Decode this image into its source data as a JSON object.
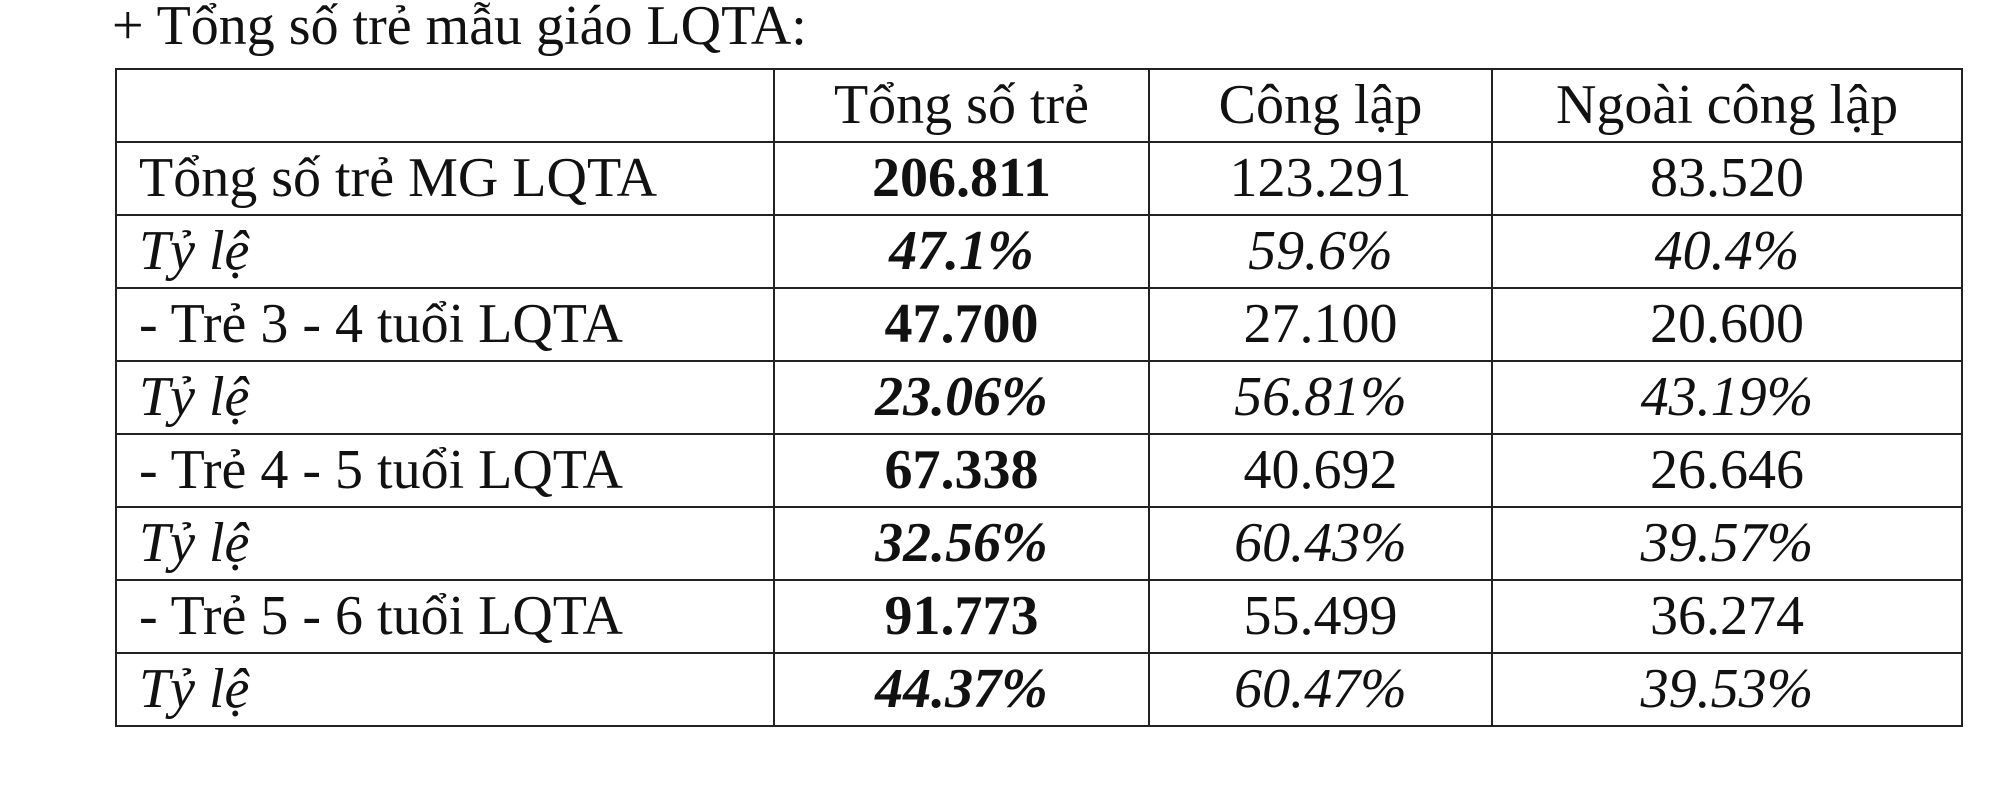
{
  "title": "+ Tổng số trẻ mẫu giáo LQTA:",
  "table": {
    "header": [
      "Tổng số trẻ",
      "Công lập",
      "Ngoài công lập"
    ],
    "rows": [
      [
        "Tổng số trẻ MG LQTA",
        "206.811",
        "123.291",
        "83.520"
      ],
      [
        "Tỷ lệ",
        "47.1%",
        "59.6%",
        "40.4%"
      ],
      [
        "- Trẻ 3 - 4 tuổi LQTA",
        "47.700",
        "27.100",
        "20.600"
      ],
      [
        "Tỷ lệ",
        "23.06%",
        "56.81%",
        "43.19%"
      ],
      [
        "- Trẻ 4 - 5 tuổi LQTA",
        "67.338",
        "40.692",
        "26.646"
      ],
      [
        "Tỷ lệ",
        "32.56%",
        "60.43%",
        "39.57%"
      ],
      [
        "- Trẻ 5 - 6 tuổi LQTA",
        "91.773",
        "55.499",
        "36.274"
      ],
      [
        "Tỷ lệ",
        "44.37%",
        "60.47%",
        "39.53%"
      ]
    ]
  }
}
